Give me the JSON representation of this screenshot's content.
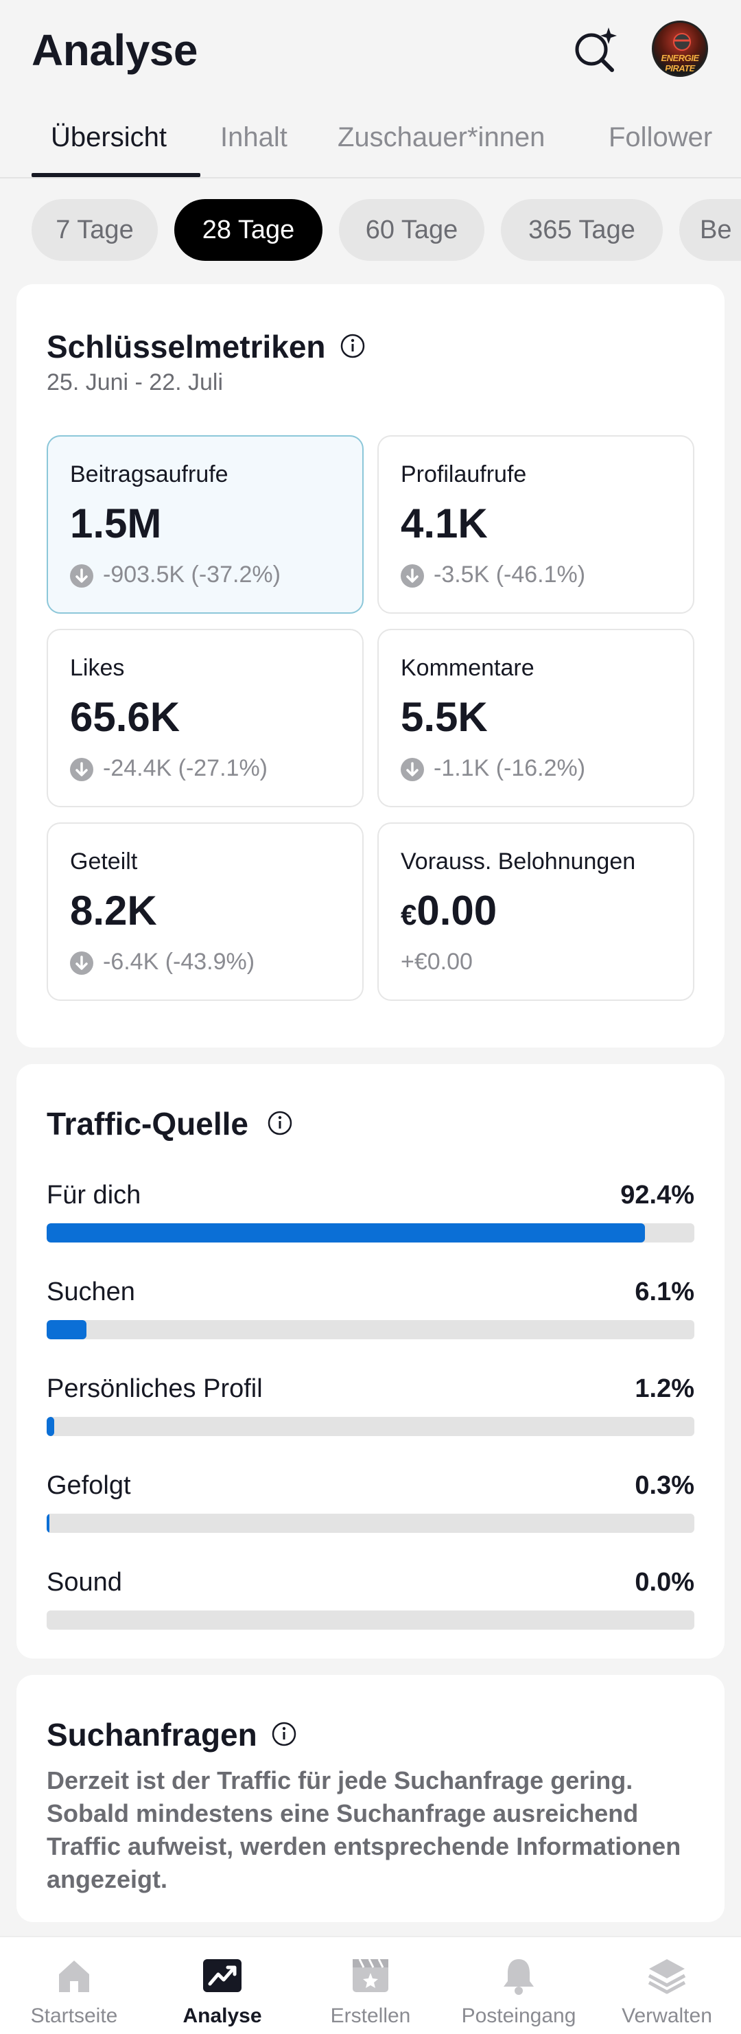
{
  "header": {
    "title": "Analyse",
    "avatar_text": "ENERGIE PIRATE"
  },
  "tabs": [
    {
      "label": "Übersicht",
      "active": true
    },
    {
      "label": "Inhalt"
    },
    {
      "label": "Zuschauer*innen"
    },
    {
      "label": "Follower"
    }
  ],
  "periods": [
    {
      "label": "7 Tage"
    },
    {
      "label": "28 Tage",
      "active": true
    },
    {
      "label": "60 Tage"
    },
    {
      "label": "365 Tage"
    },
    {
      "label": "Be"
    }
  ],
  "key_metrics": {
    "title": "Schlüsselmetriken",
    "date_range": "25. Juni - 22. Juli",
    "items": [
      {
        "label": "Beitragsaufrufe",
        "value": "1.5M",
        "change": "-903.5K (-37.2%)",
        "trend": "down"
      },
      {
        "label": "Profilaufrufe",
        "value": "4.1K",
        "change": "-3.5K (-46.1%)",
        "trend": "down"
      },
      {
        "label": "Likes",
        "value": "65.6K",
        "change": "-24.4K (-27.1%)",
        "trend": "down"
      },
      {
        "label": "Kommentare",
        "value": "5.5K",
        "change": "-1.1K (-16.2%)",
        "trend": "down"
      },
      {
        "label": "Geteilt",
        "value": "8.2K",
        "change": "-6.4K (-43.9%)",
        "trend": "down"
      },
      {
        "label": "Vorauss. Belohnungen",
        "currency": "€",
        "value": "0.00",
        "change": "+€0.00",
        "trend": "none"
      }
    ]
  },
  "traffic": {
    "title": "Traffic-Quelle",
    "items": [
      {
        "label": "Für dich",
        "percent": "92.4%",
        "value": 92.4
      },
      {
        "label": "Suchen",
        "percent": "6.1%",
        "value": 6.1
      },
      {
        "label": "Persönliches Profil",
        "percent": "1.2%",
        "value": 1.2
      },
      {
        "label": "Gefolgt",
        "percent": "0.3%",
        "value": 0.3
      },
      {
        "label": "Sound",
        "percent": "0.0%",
        "value": 0.0
      }
    ]
  },
  "search_queries": {
    "title": "Suchanfragen",
    "text": "Derzeit ist der Traffic für jede Suchanfrage gering. Sobald mindestens eine Suchanfrage ausreichend Traffic aufweist, werden entsprechende Informationen angezeigt."
  },
  "bottom_nav": [
    {
      "label": "Startseite",
      "icon": "home-icon"
    },
    {
      "label": "Analyse",
      "icon": "analytics-icon",
      "active": true
    },
    {
      "label": "Erstellen",
      "icon": "create-icon"
    },
    {
      "label": "Posteingang",
      "icon": "bell-icon"
    },
    {
      "label": "Verwalten",
      "icon": "layers-icon"
    }
  ],
  "colors": {
    "accent_blue": "#0b6fd6",
    "selected_card_bg": "#f3f9fd",
    "muted_text": "#8a8b91"
  }
}
